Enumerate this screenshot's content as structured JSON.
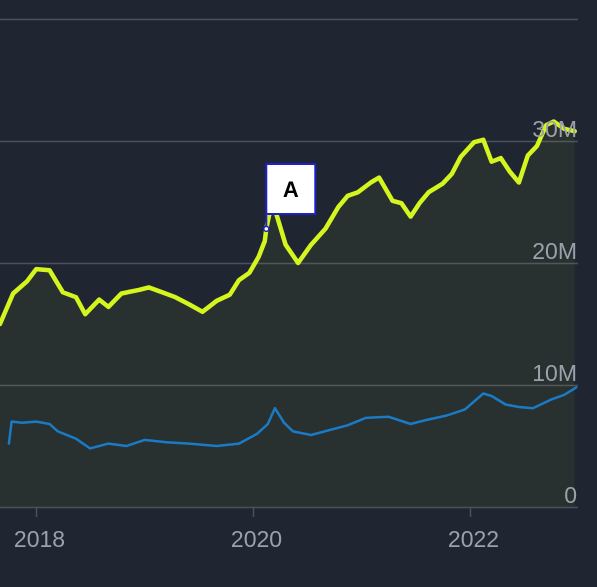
{
  "chart_data": {
    "type": "line",
    "x_range": [
      "2017-09-01",
      "2022-12-31"
    ],
    "y_range": [
      0,
      32000000
    ],
    "x_tick_labels": [
      "2018",
      "2020",
      "2022"
    ],
    "y_tick_labels": [
      "0",
      "10M",
      "20M",
      "30M"
    ],
    "grid": true,
    "colors": {
      "background": "#1f2631",
      "grid": "#4a515c",
      "series_high": "#d4f51e",
      "series_low": "#1a7bc4",
      "flag_border": "#1f20c8"
    },
    "annotations": [
      {
        "label": "A",
        "x": "2020-02-15",
        "y": 22800000
      }
    ],
    "series": [
      {
        "color": "#d4f51e",
        "points": [
          [
            "2017-09-01",
            15000000
          ],
          [
            "2017-10-15",
            17500000
          ],
          [
            "2017-12-01",
            18500000
          ],
          [
            "2018-01-01",
            19500000
          ],
          [
            "2018-02-15",
            19400000
          ],
          [
            "2018-04-01",
            17600000
          ],
          [
            "2018-05-15",
            17200000
          ],
          [
            "2018-06-15",
            15800000
          ],
          [
            "2018-08-01",
            17000000
          ],
          [
            "2018-09-01",
            16400000
          ],
          [
            "2018-10-15",
            17500000
          ],
          [
            "2018-12-15",
            17800000
          ],
          [
            "2019-01-15",
            18000000
          ],
          [
            "2019-03-01",
            17600000
          ],
          [
            "2019-04-15",
            17200000
          ],
          [
            "2019-06-01",
            16600000
          ],
          [
            "2019-07-15",
            16000000
          ],
          [
            "2019-09-01",
            16900000
          ],
          [
            "2019-10-15",
            17400000
          ],
          [
            "2019-11-15",
            18600000
          ],
          [
            "2019-12-20",
            19200000
          ],
          [
            "2020-01-20",
            20500000
          ],
          [
            "2020-02-10",
            21800000
          ],
          [
            "2020-02-15",
            22800000
          ],
          [
            "2020-02-25",
            24000000
          ],
          [
            "2020-03-15",
            24400000
          ],
          [
            "2020-04-20",
            21500000
          ],
          [
            "2020-06-01",
            20000000
          ],
          [
            "2020-07-15",
            21500000
          ],
          [
            "2020-09-01",
            22800000
          ],
          [
            "2020-10-15",
            24600000
          ],
          [
            "2020-11-15",
            25500000
          ],
          [
            "2020-12-20",
            25800000
          ],
          [
            "2021-02-01",
            26600000
          ],
          [
            "2021-03-01",
            27000000
          ],
          [
            "2021-04-15",
            25100000
          ],
          [
            "2021-05-15",
            24900000
          ],
          [
            "2021-06-15",
            23800000
          ],
          [
            "2021-07-15",
            24900000
          ],
          [
            "2021-08-15",
            25800000
          ],
          [
            "2021-10-01",
            26500000
          ],
          [
            "2021-11-01",
            27300000
          ],
          [
            "2021-12-01",
            28700000
          ],
          [
            "2022-01-15",
            29900000
          ],
          [
            "2022-02-15",
            30100000
          ],
          [
            "2022-03-15",
            28300000
          ],
          [
            "2022-04-15",
            28600000
          ],
          [
            "2022-05-15",
            27500000
          ],
          [
            "2022-06-15",
            26600000
          ],
          [
            "2022-07-15",
            28800000
          ],
          [
            "2022-08-15",
            29600000
          ],
          [
            "2022-09-15",
            31300000
          ],
          [
            "2022-10-10",
            31600000
          ],
          [
            "2022-11-15",
            31000000
          ],
          [
            "2022-12-20",
            30800000
          ]
        ]
      },
      {
        "color": "#1a7bc4",
        "points": [
          [
            "2017-10-01",
            5200000
          ],
          [
            "2017-10-10",
            7000000
          ],
          [
            "2017-11-15",
            6900000
          ],
          [
            "2018-01-01",
            7000000
          ],
          [
            "2018-02-15",
            6800000
          ],
          [
            "2018-03-15",
            6200000
          ],
          [
            "2018-05-15",
            5600000
          ],
          [
            "2018-07-01",
            4800000
          ],
          [
            "2018-09-01",
            5200000
          ],
          [
            "2018-11-01",
            5000000
          ],
          [
            "2019-01-01",
            5500000
          ],
          [
            "2019-03-15",
            5300000
          ],
          [
            "2019-06-01",
            5200000
          ],
          [
            "2019-09-01",
            5000000
          ],
          [
            "2019-11-15",
            5200000
          ],
          [
            "2020-01-15",
            6000000
          ],
          [
            "2020-02-20",
            6800000
          ],
          [
            "2020-03-15",
            8100000
          ],
          [
            "2020-04-15",
            6900000
          ],
          [
            "2020-05-15",
            6200000
          ],
          [
            "2020-07-15",
            5900000
          ],
          [
            "2020-09-15",
            6300000
          ],
          [
            "2020-11-15",
            6700000
          ],
          [
            "2021-01-15",
            7300000
          ],
          [
            "2021-04-01",
            7400000
          ],
          [
            "2021-06-15",
            6800000
          ],
          [
            "2021-08-01",
            7100000
          ],
          [
            "2021-10-15",
            7500000
          ],
          [
            "2021-12-15",
            8000000
          ],
          [
            "2022-02-15",
            9300000
          ],
          [
            "2022-03-15",
            9100000
          ],
          [
            "2022-05-01",
            8400000
          ],
          [
            "2022-06-15",
            8200000
          ],
          [
            "2022-08-01",
            8100000
          ],
          [
            "2022-10-01",
            8800000
          ],
          [
            "2022-11-15",
            9200000
          ],
          [
            "2022-12-25",
            9800000
          ]
        ]
      }
    ]
  }
}
